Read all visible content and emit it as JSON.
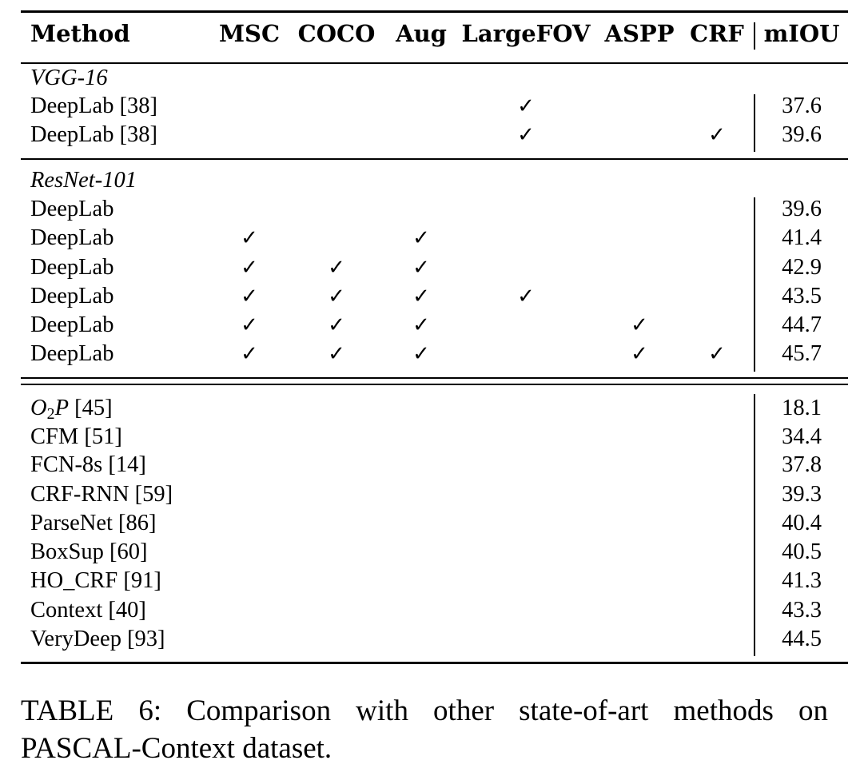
{
  "table": {
    "headers": [
      "Method",
      "MSC",
      "COCO",
      "Aug",
      "LargeFOV",
      "ASPP",
      "CRF",
      "mIOU"
    ],
    "sections": [
      {
        "label": "VGG-16",
        "rows": [
          {
            "method": "DeepLab [38]",
            "MSC": false,
            "COCO": false,
            "Aug": false,
            "LargeFOV": true,
            "ASPP": false,
            "CRF": false,
            "miou": "37.6"
          },
          {
            "method": "DeepLab [38]",
            "MSC": false,
            "COCO": false,
            "Aug": false,
            "LargeFOV": true,
            "ASPP": false,
            "CRF": true,
            "miou": "39.6"
          }
        ]
      },
      {
        "label": "ResNet-101",
        "rows": [
          {
            "method": "DeepLab",
            "MSC": false,
            "COCO": false,
            "Aug": false,
            "LargeFOV": false,
            "ASPP": false,
            "CRF": false,
            "miou": "39.6"
          },
          {
            "method": "DeepLab",
            "MSC": true,
            "COCO": false,
            "Aug": true,
            "LargeFOV": false,
            "ASPP": false,
            "CRF": false,
            "miou": "41.4"
          },
          {
            "method": "DeepLab",
            "MSC": true,
            "COCO": true,
            "Aug": true,
            "LargeFOV": false,
            "ASPP": false,
            "CRF": false,
            "miou": "42.9"
          },
          {
            "method": "DeepLab",
            "MSC": true,
            "COCO": true,
            "Aug": true,
            "LargeFOV": true,
            "ASPP": false,
            "CRF": false,
            "miou": "43.5"
          },
          {
            "method": "DeepLab",
            "MSC": true,
            "COCO": true,
            "Aug": true,
            "LargeFOV": false,
            "ASPP": true,
            "CRF": false,
            "miou": "44.7"
          },
          {
            "method": "DeepLab",
            "MSC": true,
            "COCO": true,
            "Aug": true,
            "LargeFOV": false,
            "ASPP": true,
            "CRF": true,
            "miou": "45.7"
          }
        ]
      },
      {
        "label": "",
        "rows": [
          {
            "method": "O2P [45]",
            "miou": "18.1"
          },
          {
            "method": "CFM [51]",
            "miou": "34.4"
          },
          {
            "method": "FCN-8s [14]",
            "miou": "37.8"
          },
          {
            "method": "CRF-RNN [59]",
            "miou": "39.3"
          },
          {
            "method": "ParseNet [86]",
            "miou": "40.4"
          },
          {
            "method": "BoxSup [60]",
            "miou": "40.5"
          },
          {
            "method": "HO_CRF [91]",
            "miou": "41.3"
          },
          {
            "method": "Context [40]",
            "miou": "43.3"
          },
          {
            "method": "VeryDeep [93]",
            "miou": "44.5"
          }
        ]
      }
    ],
    "check_symbol": "✓"
  },
  "caption": "TABLE 6: Comparison with other state-of-art methods on PASCAL-Context dataset."
}
